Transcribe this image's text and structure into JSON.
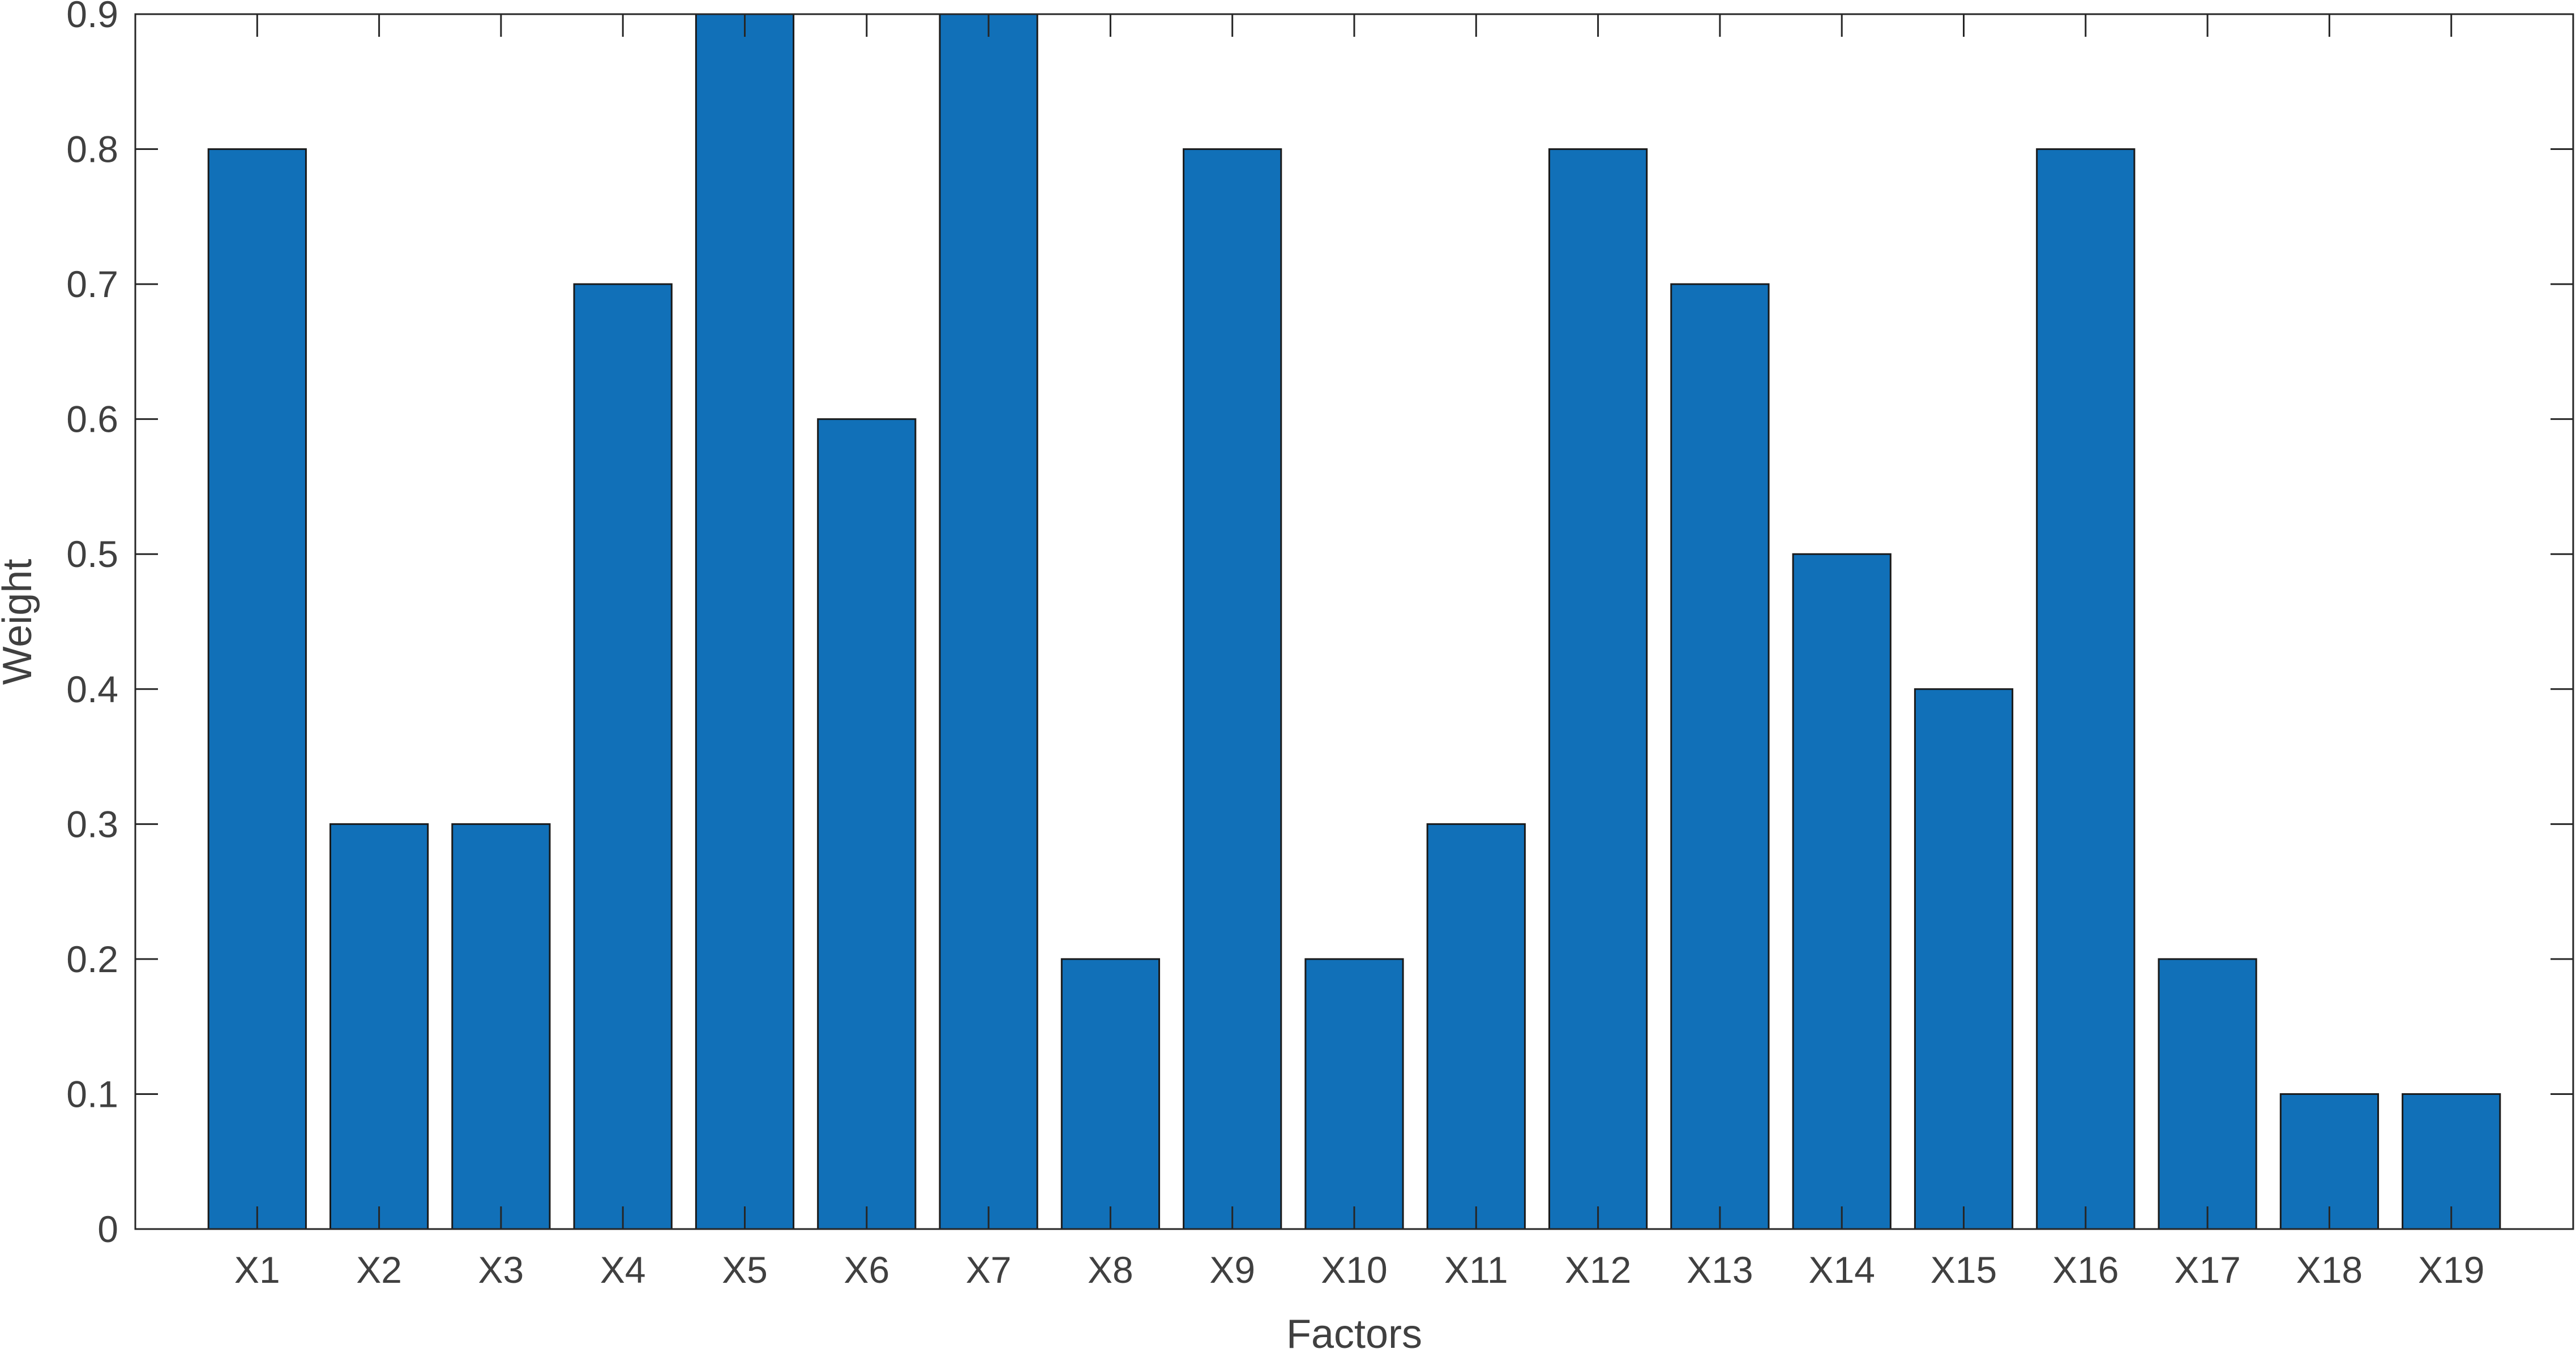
{
  "chart_data": {
    "type": "bar",
    "title": "",
    "xlabel": "Factors",
    "ylabel": "Weight",
    "categories": [
      "X1",
      "X2",
      "X3",
      "X4",
      "X5",
      "X6",
      "X7",
      "X8",
      "X9",
      "X10",
      "X11",
      "X12",
      "X13",
      "X14",
      "X15",
      "X16",
      "X17",
      "X18",
      "X19"
    ],
    "values": [
      0.8,
      0.3,
      0.3,
      0.7,
      0.9,
      0.6,
      0.9,
      0.2,
      0.8,
      0.2,
      0.3,
      0.8,
      0.7,
      0.5,
      0.4,
      0.8,
      0.2,
      0.1,
      0.1
    ],
    "ylim": [
      0,
      0.9
    ],
    "yticks": [
      "0",
      "0.1",
      "0.2",
      "0.3",
      "0.4",
      "0.5",
      "0.6",
      "0.7",
      "0.8",
      "0.9"
    ],
    "grid": false,
    "bar_color": "#1170B8",
    "bar_edge_color": "#1A1A1A",
    "axis_color": "#262626",
    "text_color": "#404040"
  }
}
